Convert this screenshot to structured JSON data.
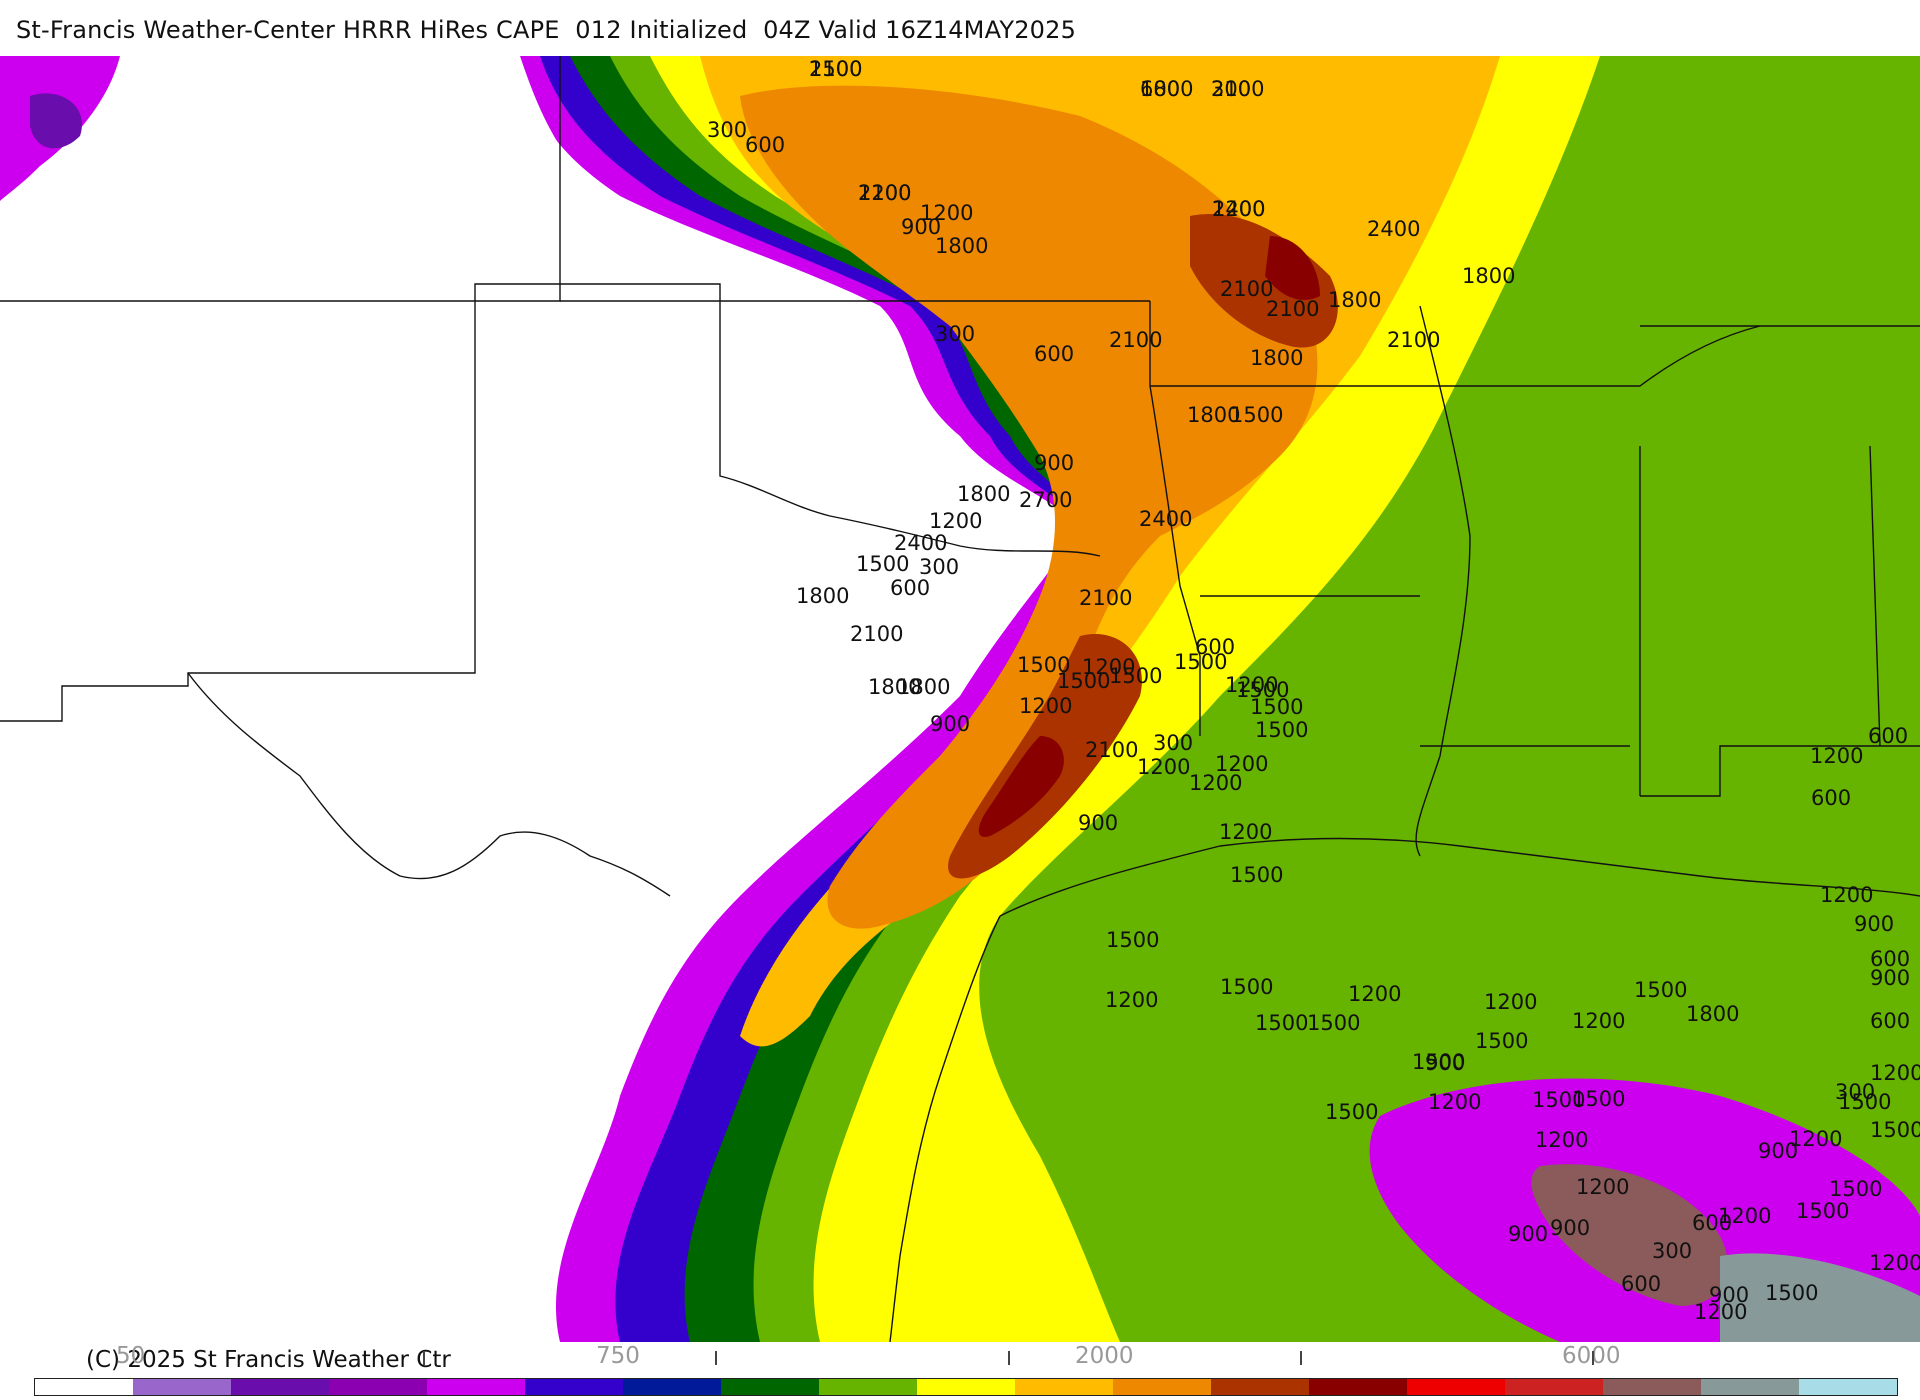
{
  "header": {
    "title": "St-Francis Weather-Center HRRR HiRes CAPE  012 Initialized  04Z Valid 16Z14MAY2025"
  },
  "map": {
    "field": "CAPE",
    "contour_labels": [
      "2100",
      "2100",
      "1800",
      "2100",
      "2400",
      "2400",
      "1800",
      "2100",
      "1800",
      "2100",
      "1800",
      "2100",
      "2100",
      "1800",
      "1500",
      "1800",
      "1200",
      "900",
      "300",
      "600",
      "300",
      "600",
      "900",
      "1800",
      "2700",
      "2400",
      "1200",
      "1500",
      "2400",
      "300",
      "2100",
      "600",
      "1800",
      "2100",
      "1800",
      "1500",
      "1800",
      "1500",
      "1200",
      "900",
      "1200",
      "2100",
      "1500",
      "1500",
      "1200",
      "1200",
      "1500",
      "1500",
      "600",
      "900",
      "300",
      "1200",
      "1500",
      "1200",
      "1500",
      "1200",
      "1500",
      "1500",
      "1500",
      "1200",
      "1500",
      "1500",
      "1500",
      "1200",
      "1500",
      "1200",
      "1200",
      "1500",
      "1800",
      "1500",
      "1200",
      "1500",
      "1200",
      "900",
      "900",
      "900",
      "1200",
      "600",
      "1200",
      "900",
      "300",
      "600",
      "300",
      "1500",
      "900",
      "1200",
      "1500",
      "1200",
      "1500",
      "1500",
      "1200",
      "1500",
      "1200",
      "600",
      "900",
      "600",
      "900",
      "1200",
      "600",
      "1200",
      "600",
      "1500",
      "1200",
      "600",
      "300",
      "1200"
    ]
  },
  "footer": {
    "credit": "(C) 2025 St Francis Weather Ctr"
  },
  "colorbar": {
    "tick_labels": [
      "50",
      "750",
      "2000",
      "6000"
    ],
    "colors": [
      "#ffffff",
      "#9966cc",
      "#6a0dad",
      "#8b00b0",
      "#cc00ee",
      "#3300cc",
      "#001a99",
      "#006600",
      "#66b300",
      "#ffff00",
      "#ffbb00",
      "#ee8800",
      "#aa3300",
      "#880000",
      "#ee0000",
      "#cc2222",
      "#8b5a5a",
      "#889999",
      "#a8dde8"
    ]
  }
}
